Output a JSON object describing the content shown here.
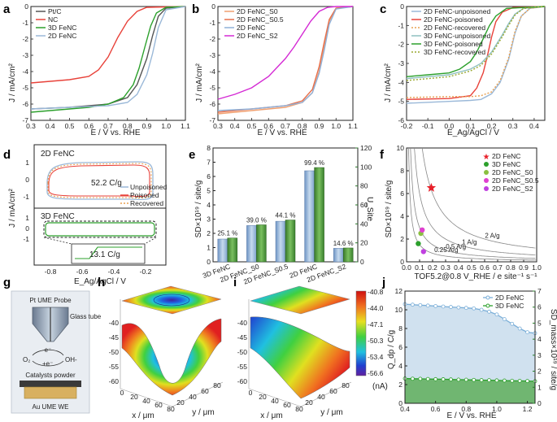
{
  "panel_labels": [
    "a",
    "b",
    "c",
    "d",
    "e",
    "f",
    "g",
    "h",
    "i",
    "j"
  ],
  "chart_data": [
    {
      "id": "a",
      "type": "line",
      "xlabel": "E / V vs. RHE",
      "ylabel": "J / mA/cm²",
      "xlim": [
        0.3,
        1.1
      ],
      "ylim": [
        -7,
        0
      ],
      "xticks": [
        "0.3",
        "0.4",
        "0.5",
        "0.6",
        "0.7",
        "0.8",
        "0.9",
        "1.0",
        "1.1"
      ],
      "yticks": [
        "-7",
        "-6",
        "-5",
        "-4",
        "-3",
        "-2",
        "-1",
        "0"
      ],
      "legend_position": "top-left",
      "series": [
        {
          "name": "Pt/C",
          "color": "#555555",
          "x": [
            0.3,
            0.5,
            0.7,
            0.8,
            0.85,
            0.9,
            0.93,
            0.96,
            1.0,
            1.1
          ],
          "y": [
            -6.3,
            -6.2,
            -6.0,
            -5.6,
            -4.8,
            -3.2,
            -1.8,
            -0.6,
            -0.1,
            0
          ]
        },
        {
          "name": "NC",
          "color": "#e8423a",
          "x": [
            0.3,
            0.5,
            0.6,
            0.65,
            0.7,
            0.75,
            0.8,
            0.85,
            0.9,
            1.1
          ],
          "y": [
            -4.7,
            -4.5,
            -4.3,
            -3.9,
            -3.1,
            -1.9,
            -0.9,
            -0.3,
            -0.05,
            0
          ]
        },
        {
          "name": "3D FeNC",
          "color": "#2ca02c",
          "x": [
            0.3,
            0.5,
            0.6,
            0.7,
            0.78,
            0.83,
            0.86,
            0.89,
            0.92,
            0.95,
            1.0,
            1.1
          ],
          "y": [
            -6.5,
            -6.3,
            -6.2,
            -6.0,
            -5.6,
            -4.8,
            -3.8,
            -2.5,
            -1.2,
            -0.4,
            -0.05,
            0
          ]
        },
        {
          "name": "2D FeNC",
          "color": "#9ab8d8",
          "x": [
            0.3,
            0.5,
            0.7,
            0.8,
            0.85,
            0.9,
            0.93,
            0.96,
            1.0,
            1.1
          ],
          "y": [
            -6.3,
            -6.2,
            -6.1,
            -5.9,
            -5.4,
            -4.2,
            -2.9,
            -1.3,
            -0.2,
            0
          ]
        }
      ]
    },
    {
      "id": "b",
      "type": "line",
      "xlabel": "E / V vs. RHE",
      "ylabel": "J / mA/cm²",
      "xlim": [
        0.3,
        1.1
      ],
      "ylim": [
        -7,
        0
      ],
      "xticks": [
        "0.3",
        "0.4",
        "0.5",
        "0.6",
        "0.7",
        "0.8",
        "0.9",
        "1.0",
        "1.1"
      ],
      "yticks": [
        "-7",
        "-6",
        "-5",
        "-4",
        "-3",
        "-2",
        "-1",
        "0"
      ],
      "legend_position": "top-left",
      "series": [
        {
          "name": "2D FeNC_S0",
          "color": "#f0a070",
          "x": [
            0.3,
            0.5,
            0.7,
            0.8,
            0.86,
            0.9,
            0.93,
            0.96,
            1.0,
            1.1
          ],
          "y": [
            -6.6,
            -6.4,
            -6.2,
            -5.9,
            -5.3,
            -4.0,
            -2.5,
            -0.9,
            -0.1,
            0
          ]
        },
        {
          "name": "2D FeNC_S0.5",
          "color": "#e86f4a",
          "x": [
            0.3,
            0.5,
            0.7,
            0.8,
            0.86,
            0.9,
            0.93,
            0.96,
            1.0,
            1.1
          ],
          "y": [
            -6.5,
            -6.3,
            -6.1,
            -5.8,
            -5.1,
            -3.7,
            -2.2,
            -0.8,
            -0.1,
            0
          ]
        },
        {
          "name": "2D FeNC",
          "color": "#8fb0d8",
          "x": [
            0.3,
            0.5,
            0.7,
            0.8,
            0.86,
            0.9,
            0.93,
            0.96,
            1.0,
            1.1
          ],
          "y": [
            -6.4,
            -6.3,
            -6.1,
            -5.9,
            -5.3,
            -4.1,
            -2.7,
            -1.1,
            -0.15,
            0
          ]
        },
        {
          "name": "2D FeNC_S2",
          "color": "#d42ad4",
          "x": [
            0.3,
            0.4,
            0.5,
            0.6,
            0.7,
            0.75,
            0.8,
            0.85,
            0.9,
            0.95,
            1.0,
            1.1
          ],
          "y": [
            -5.7,
            -5.4,
            -5.0,
            -4.3,
            -3.2,
            -2.5,
            -1.7,
            -0.9,
            -0.3,
            -0.05,
            0,
            0
          ]
        }
      ]
    },
    {
      "id": "c",
      "type": "line",
      "xlabel": "E_Ag/AgCl / V",
      "ylabel": "J / mA/cm²",
      "xlim": [
        -0.2,
        0.45
      ],
      "ylim": [
        -6,
        0
      ],
      "xticks": [
        "-0.2",
        "-0.1",
        "0.0",
        "0.1",
        "0.2",
        "0.3",
        "0.4"
      ],
      "yticks": [
        "-6",
        "-5",
        "-4",
        "-3",
        "-2",
        "-1",
        "0"
      ],
      "legend_position": "top-left",
      "series": [
        {
          "name": "2D FeNC-unpoisoned",
          "color": "#9ab8d8",
          "style": "solid",
          "x": [
            -0.2,
            0.0,
            0.1,
            0.15,
            0.2,
            0.24,
            0.28,
            0.31,
            0.34,
            0.38,
            0.45
          ],
          "y": [
            -5.1,
            -5.0,
            -4.95,
            -4.9,
            -4.6,
            -4.0,
            -2.8,
            -1.4,
            -0.5,
            -0.1,
            0
          ]
        },
        {
          "name": "2D FeNC-poisoned",
          "color": "#e8423a",
          "style": "solid",
          "x": [
            -0.2,
            0.0,
            0.1,
            0.13,
            0.16,
            0.18,
            0.2,
            0.22,
            0.25,
            0.3,
            0.45
          ],
          "y": [
            -4.9,
            -4.85,
            -4.7,
            -4.3,
            -3.5,
            -2.6,
            -1.6,
            -0.8,
            -0.3,
            -0.05,
            0
          ]
        },
        {
          "name": "2D FeNC-recovered",
          "color": "#e8a050",
          "style": "dotted",
          "x": [
            -0.2,
            0.0,
            0.1,
            0.15,
            0.2,
            0.24,
            0.28,
            0.31,
            0.34,
            0.38,
            0.45
          ],
          "y": [
            -4.8,
            -4.75,
            -4.75,
            -4.7,
            -4.5,
            -3.9,
            -2.7,
            -1.3,
            -0.5,
            -0.1,
            0
          ]
        },
        {
          "name": "3D FeNC-unpoisoned",
          "color": "#8fc0c0",
          "style": "solid",
          "x": [
            -0.2,
            -0.1,
            0.0,
            0.1,
            0.15,
            0.2,
            0.25,
            0.28,
            0.31,
            0.35,
            0.45
          ],
          "y": [
            -3.8,
            -3.7,
            -3.6,
            -3.3,
            -3.0,
            -2.4,
            -1.5,
            -0.9,
            -0.4,
            -0.1,
            0
          ]
        },
        {
          "name": "3D FeNC-poisoned",
          "color": "#2ca02c",
          "style": "solid",
          "x": [
            -0.2,
            -0.1,
            0.0,
            0.05,
            0.1,
            0.13,
            0.16,
            0.19,
            0.22,
            0.27,
            0.45
          ],
          "y": [
            -3.7,
            -3.6,
            -3.5,
            -3.3,
            -2.9,
            -2.4,
            -1.7,
            -1.0,
            -0.5,
            -0.1,
            0
          ]
        },
        {
          "name": "3D FeNC-recovered",
          "color": "#9aa830",
          "style": "dotted",
          "x": [
            -0.2,
            -0.1,
            0.0,
            0.1,
            0.15,
            0.2,
            0.25,
            0.28,
            0.31,
            0.35,
            0.45
          ],
          "y": [
            -3.9,
            -3.8,
            -3.7,
            -3.4,
            -3.1,
            -2.5,
            -1.6,
            -1.0,
            -0.45,
            -0.1,
            0
          ]
        }
      ]
    },
    {
      "id": "d",
      "type": "line",
      "xlabel": "E_Ag/AgCl / V",
      "ylabel": "J / mA/cm²",
      "xlim": [
        -0.9,
        -0.05
      ],
      "xticks": [
        "-0.8",
        "-0.6",
        "-0.4",
        "-0.2"
      ],
      "yticks_top": [
        "1",
        "0",
        "-1"
      ],
      "yticks_bottom": [
        "1",
        "0",
        "-1"
      ],
      "labels": [
        "2D FeNC",
        "3D FeNC"
      ],
      "annotations": [
        "52.2 C/g",
        "13.1 C/g"
      ],
      "legend": [
        "Unpoisoned",
        "Poisoned",
        "Recovered"
      ],
      "legend_colors": [
        "#9ab8d8",
        "#e8423a",
        "#e8a050"
      ],
      "legend_position": "right"
    },
    {
      "id": "e",
      "type": "bar",
      "ylabel": "SD×10¹⁹ / site/g",
      "y2label": "U_Site",
      "categories": [
        "3D FeNC",
        "2D FeNC_S0",
        "2D FeNC_S0.5",
        "2D FeNC",
        "2D FeNC_S2"
      ],
      "sd_values": [
        1.6,
        2.55,
        2.85,
        6.4,
        0.95
      ],
      "usite_values": [
        25.1,
        39.0,
        44.1,
        99.4,
        14.6
      ],
      "bar_labels": [
        "25.1 %",
        "39.0 %",
        "44.1 %",
        "99.4 %",
        "14.6 %"
      ],
      "ylim": [
        0,
        8
      ],
      "y2lim": [
        0,
        120
      ],
      "yticks": [
        "0",
        "1",
        "2",
        "3",
        "4",
        "5",
        "6",
        "7",
        "8"
      ],
      "y2ticks": [
        "0",
        "20",
        "40",
        "60",
        "80",
        "100",
        "120"
      ],
      "colors": {
        "sd": "#9ab8d8",
        "usite": "#4a9a3a"
      }
    },
    {
      "id": "f",
      "type": "scatter",
      "xlabel": "TOF5.2@0.8 V_RHE / e site⁻¹ s⁻¹",
      "ylabel": "SD×10¹⁹ / site/g",
      "xlim": [
        0,
        1.0
      ],
      "ylim": [
        0,
        10
      ],
      "xticks": [
        "0.0",
        "0.1",
        "0.2",
        "0.3",
        "0.4",
        "0.5",
        "0.6",
        "0.7",
        "0.8",
        "0.9",
        "1.0"
      ],
      "yticks": [
        "0",
        "2",
        "4",
        "6",
        "8",
        "10"
      ],
      "iso_curves": [
        {
          "label": "2 A/g",
          "k": 1.2
        },
        {
          "label": "1 A/g",
          "k": 0.6
        },
        {
          "label": "0.5 A/g",
          "k": 0.3
        },
        {
          "label": "0.25 A/g",
          "k": 0.15
        }
      ],
      "points": [
        {
          "name": "2D FeNC",
          "x": 0.19,
          "y": 6.5,
          "color": "#e8202a",
          "marker": "star"
        },
        {
          "name": "3D FeNC",
          "x": 0.09,
          "y": 1.6,
          "color": "#2ca02c",
          "marker": "circle"
        },
        {
          "name": "2D FeNC_S0",
          "x": 0.11,
          "y": 2.5,
          "color": "#8ac040",
          "marker": "circle"
        },
        {
          "name": "2D FeNC_S0.5",
          "x": 0.12,
          "y": 2.8,
          "color": "#e040d0",
          "marker": "circle"
        },
        {
          "name": "2D FeNC_S2",
          "x": 0.13,
          "y": 0.9,
          "color": "#c040e0",
          "marker": "circle"
        }
      ],
      "legend_position": "top-right"
    },
    {
      "id": "h",
      "type": "heatmap",
      "zlabel": "Substrate Current / nA",
      "zticks": [
        "-40",
        "-45",
        "-50",
        "-55",
        "-60"
      ],
      "xlabel": "x / μm",
      "ylabel": "y / μm",
      "xticks": [
        "0",
        "20",
        "40",
        "60",
        "80"
      ],
      "yticks": [
        "20",
        "40",
        "60",
        "80"
      ]
    },
    {
      "id": "i",
      "type": "heatmap",
      "zticks": [
        "-40",
        "-45",
        "-50",
        "-55",
        "-60"
      ],
      "xlabel": "x / μm",
      "ylabel": "y / μm",
      "xticks": [
        "0",
        "20",
        "40",
        "60",
        "80"
      ],
      "yticks": [
        "20",
        "40",
        "60",
        "80"
      ],
      "colorbar_ticks": [
        "-40.8",
        "-44.0",
        "-47.1",
        "-50.3",
        "-53.4",
        "-56.6"
      ],
      "colorbar_unit": "(nA)"
    },
    {
      "id": "j",
      "type": "area",
      "xlabel": "E / V vs. RHE",
      "ylabel": "Q_dp / C/g",
      "y2label": "SD_mass×10¹⁹ / site/g",
      "xlim": [
        0.4,
        1.25
      ],
      "ylim": [
        0,
        12
      ],
      "y2lim": [
        0,
        7
      ],
      "xticks": [
        "0.4",
        "0.6",
        "0.8",
        "1.0",
        "1.2"
      ],
      "yticks": [
        "0",
        "2",
        "4",
        "6",
        "8",
        "10",
        "12"
      ],
      "y2ticks": [
        "0",
        "1",
        "2",
        "3",
        "4",
        "5",
        "6",
        "7"
      ],
      "legend_position": "top-right",
      "series": [
        {
          "name": "2D FeNC",
          "color": "#7aaed8",
          "fill": "#c8dcec",
          "x": [
            0.4,
            0.45,
            0.5,
            0.55,
            0.6,
            0.65,
            0.7,
            0.75,
            0.8,
            0.85,
            0.9,
            0.95,
            1.0,
            1.05,
            1.1,
            1.15,
            1.2,
            1.25
          ],
          "y": [
            10.6,
            10.55,
            10.5,
            10.45,
            10.4,
            10.35,
            10.3,
            10.25,
            10.2,
            10.15,
            10.0,
            9.8,
            9.5,
            9.0,
            8.5,
            8.0,
            7.6,
            7.5
          ]
        },
        {
          "name": "3D FeNC",
          "color": "#2ca02c",
          "fill": "#5fae5a",
          "x": [
            0.4,
            0.45,
            0.5,
            0.55,
            0.6,
            0.65,
            0.7,
            0.75,
            0.8,
            0.85,
            0.9,
            0.95,
            1.0,
            1.05,
            1.1,
            1.15,
            1.2,
            1.25
          ],
          "y": [
            2.65,
            2.63,
            2.62,
            2.6,
            2.58,
            2.57,
            2.55,
            2.53,
            2.52,
            2.5,
            2.48,
            2.47,
            2.45,
            2.43,
            2.41,
            2.4,
            2.38,
            2.36
          ]
        }
      ]
    }
  ],
  "schematic_g": {
    "probe_label": "Pt UME Probe",
    "tube_label": "Glass tube",
    "o2": "O₂",
    "e_minus": "-e⁻",
    "e_plus": "+e⁻",
    "oh": "OH-",
    "powder_label": "Catalysts powder",
    "we_label": "Au UME WE"
  }
}
